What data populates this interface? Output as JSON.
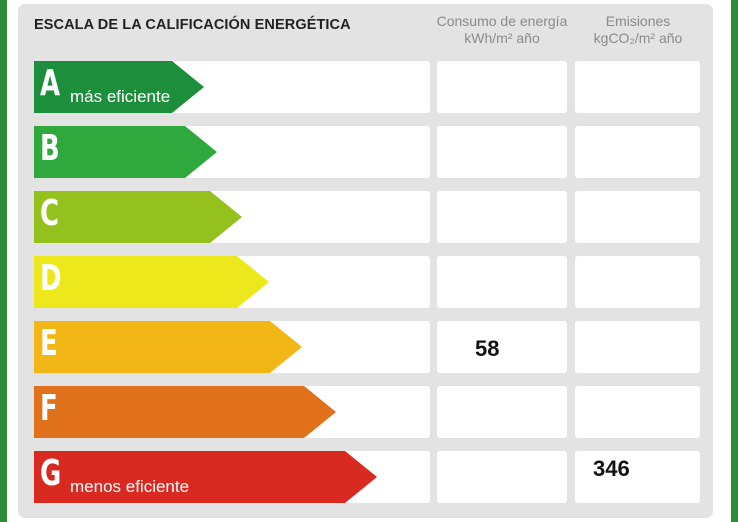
{
  "title": "ESCALA DE LA CALIFICACIÓN ENERGÉTICA",
  "headers": {
    "consumo_line1": "Consumo de energía",
    "consumo_line2": "kWh/m² año",
    "emisiones_line1": "Emisiones",
    "emisiones_line2": "kgCO₂/m² año"
  },
  "ratings": [
    {
      "letter": "A",
      "caption": "más eficiente",
      "color": "#1d8f3c"
    },
    {
      "letter": "B",
      "caption": "",
      "color": "#2fa93d"
    },
    {
      "letter": "C",
      "caption": "",
      "color": "#95c11f"
    },
    {
      "letter": "D",
      "caption": "",
      "color": "#ede81b"
    },
    {
      "letter": "E",
      "caption": "",
      "color": "#f2b617"
    },
    {
      "letter": "F",
      "caption": "",
      "color": "#e1701b"
    },
    {
      "letter": "G",
      "caption": "menos eficiente",
      "color": "#d92a22"
    }
  ],
  "values": {
    "consumo": {
      "rating": "E",
      "value": "58"
    },
    "emisiones": {
      "rating": "G",
      "value": "346"
    }
  },
  "colors": {
    "frame": "#2e8b3a",
    "panel": "#e3e3e3"
  }
}
